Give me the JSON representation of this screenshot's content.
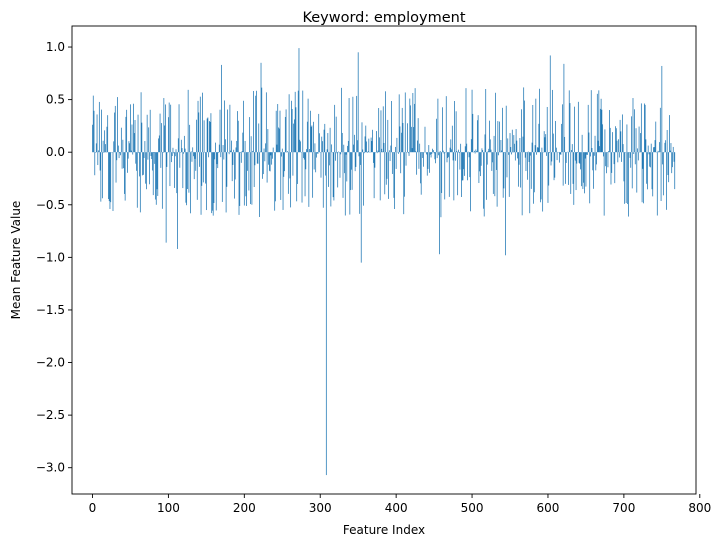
{
  "chart_data": {
    "type": "bar",
    "title": "Keyword: employment",
    "xlabel": "Feature Index",
    "ylabel": "Mean Feature Value",
    "xlim": [
      -27,
      795
    ],
    "ylim": [
      -3.25,
      1.2
    ],
    "xticks": [
      0,
      100,
      200,
      300,
      400,
      500,
      600,
      700,
      800
    ],
    "yticks": [
      1.0,
      0.5,
      0.0,
      -0.5,
      -1.0,
      -1.5,
      -2.0,
      -2.5,
      -3.0
    ],
    "xtick_labels": [
      "0",
      "100",
      "200",
      "300",
      "400",
      "500",
      "600",
      "700",
      "800"
    ],
    "ytick_labels": [
      "1.0",
      "0.5",
      "0.0",
      "−0.5",
      "−1.0",
      "−1.5",
      "−2.0",
      "−2.5",
      "−3.0"
    ],
    "bar_color": "#1f77b4",
    "grid": false,
    "n_features": 768,
    "outliers": [
      {
        "index": 308,
        "value": -3.07
      },
      {
        "index": 272,
        "value": 0.99
      },
      {
        "index": 350,
        "value": 0.95
      },
      {
        "index": 603,
        "value": 0.92
      },
      {
        "index": 354,
        "value": -1.05
      },
      {
        "index": 457,
        "value": -0.97
      },
      {
        "index": 544,
        "value": -0.98
      },
      {
        "index": 112,
        "value": -0.92
      },
      {
        "index": 97,
        "value": -0.86
      },
      {
        "index": 750,
        "value": 0.82
      },
      {
        "index": 170,
        "value": 0.83
      },
      {
        "index": 222,
        "value": 0.85
      },
      {
        "index": 621,
        "value": 0.84
      }
    ]
  }
}
